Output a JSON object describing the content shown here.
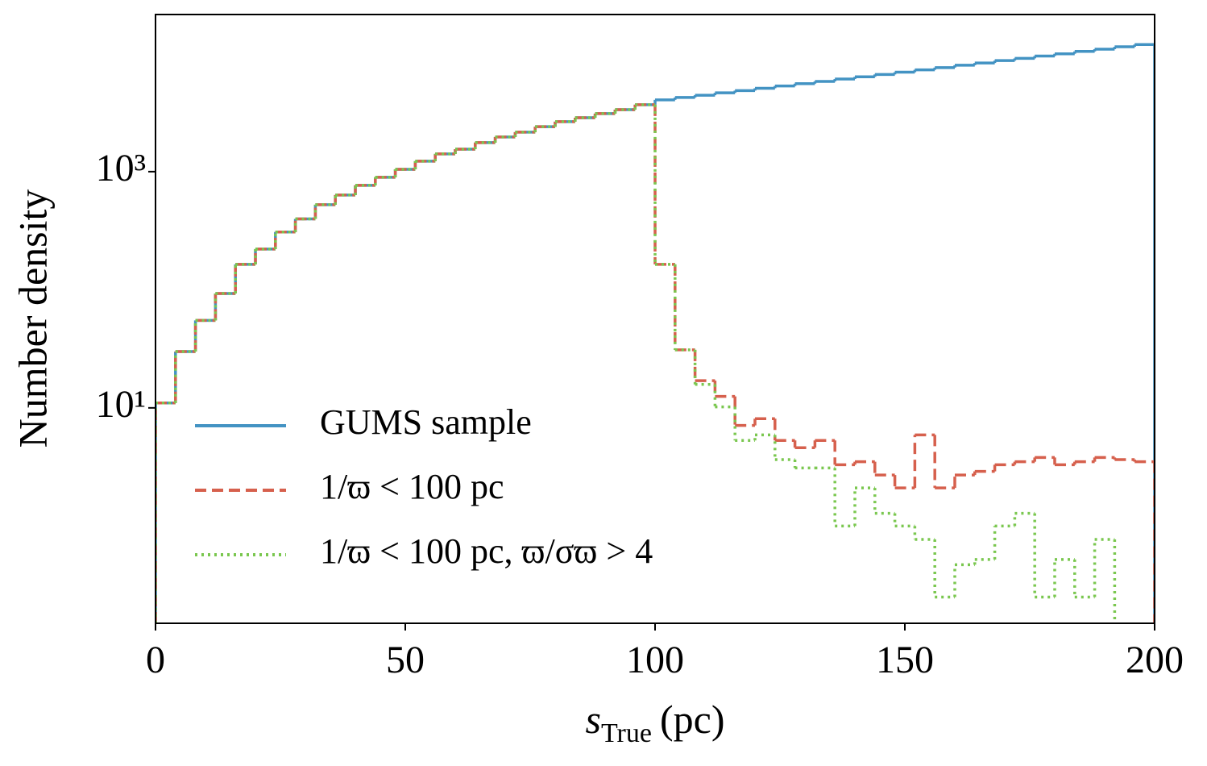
{
  "chart_data": {
    "type": "histogram",
    "xlabel": {
      "symbol": "s",
      "subscript": "True",
      "unit": "(pc)"
    },
    "ylabel": "Number density",
    "bins": [
      0,
      4,
      8,
      12,
      16,
      20,
      24,
      28,
      32,
      36,
      40,
      44,
      48,
      52,
      56,
      60,
      64,
      68,
      72,
      76,
      80,
      84,
      88,
      92,
      96,
      100,
      104,
      108,
      112,
      116,
      120,
      124,
      128,
      132,
      136,
      140,
      144,
      148,
      152,
      156,
      160,
      164,
      168,
      172,
      176,
      180,
      184,
      188,
      192,
      196,
      200
    ],
    "series": [
      {
        "name": "GUMS sample",
        "color": "#4393c3",
        "dash": "solid",
        "values": [
          11,
          30,
          55,
          93,
          164,
          221,
          308,
          398,
          525,
          634,
          766,
          896,
          1047,
          1227,
          1413,
          1550,
          1762,
          1965,
          2160,
          2400,
          2650,
          2860,
          3100,
          3350,
          3690,
          4055,
          4246,
          4436,
          4645,
          4853,
          5082,
          5309,
          5559,
          5808,
          6081,
          6353,
          6653,
          6950,
          7278,
          7603,
          7962,
          8318,
          8710,
          9099,
          9528,
          9954,
          10423,
          10889,
          11402,
          11912
        ]
      },
      {
        "name": "1/ϖ < 100 pc",
        "color": "#d6604d",
        "dash": "dashed",
        "values": [
          11,
          30,
          55,
          93,
          164,
          221,
          308,
          398,
          525,
          634,
          766,
          896,
          1047,
          1227,
          1413,
          1550,
          1762,
          1965,
          2160,
          2400,
          2650,
          2860,
          3100,
          3350,
          3690,
          164,
          31,
          17,
          12.5,
          7.1,
          8.1,
          5.3,
          4.6,
          5.3,
          3.3,
          3.5,
          2.7,
          2.1,
          5.9,
          2.1,
          2.7,
          2.9,
          3.3,
          3.5,
          3.8,
          3.3,
          3.5,
          3.8,
          3.65,
          3.5
        ]
      },
      {
        "name": "1/ϖ < 100 pc, ϖ/σϖ > 4",
        "color": "#7ac74f",
        "dash": "dotted",
        "values": [
          11,
          30,
          55,
          93,
          164,
          221,
          308,
          398,
          525,
          634,
          766,
          896,
          1047,
          1227,
          1413,
          1550,
          1762,
          1965,
          2160,
          2400,
          2650,
          2860,
          3100,
          3350,
          3690,
          164,
          31,
          15.8,
          10.2,
          5.3,
          5.9,
          3.65,
          3.1,
          3.1,
          1.0,
          2.1,
          1.28,
          1.0,
          0.77,
          0.25,
          0.47,
          0.52,
          1.0,
          1.28,
          0.25,
          0.52,
          0.25,
          0.77,
          0.1,
          null
        ]
      }
    ],
    "xlim": [
      0,
      200
    ],
    "xticks": [
      0,
      50,
      100,
      150,
      200
    ],
    "ylim": [
      0.15,
      21400
    ],
    "log_y": true,
    "yticks": [
      {
        "value": 10,
        "label": "10¹"
      },
      {
        "value": 1000,
        "label": "10³"
      }
    ],
    "legend": "lower left"
  }
}
